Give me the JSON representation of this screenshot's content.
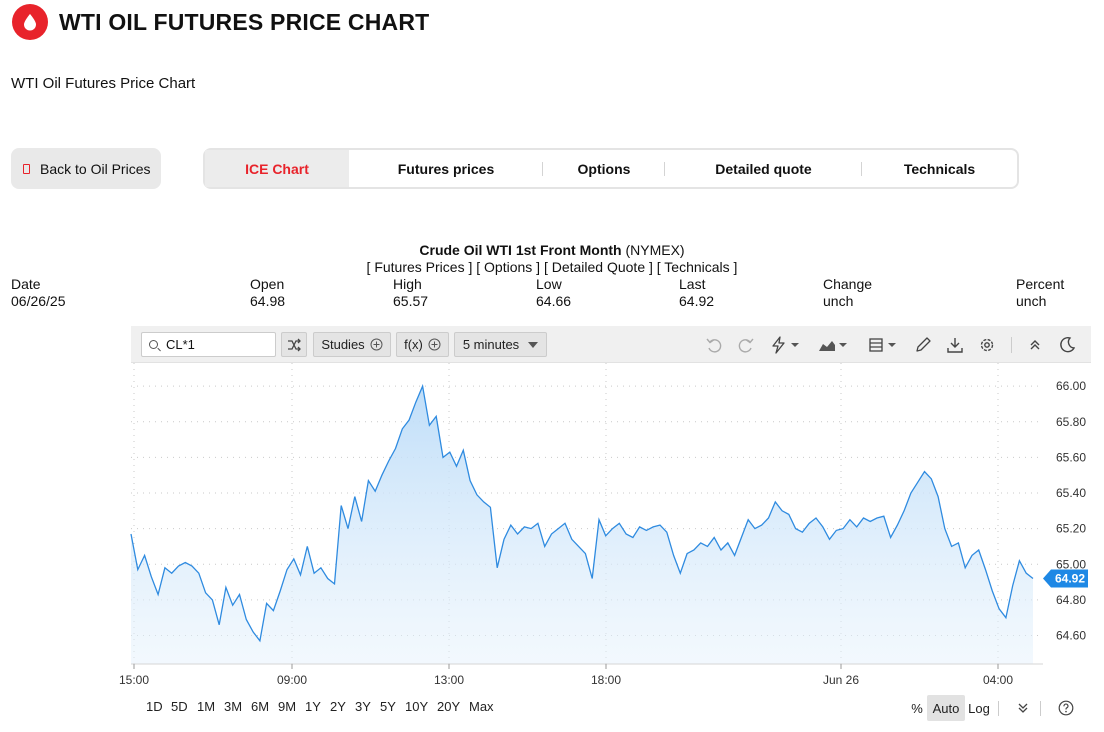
{
  "header": {
    "title": "WTI OIL FUTURES PRICE CHART",
    "subtitle": "WTI Oil Futures Price Chart"
  },
  "back_button": {
    "label": "Back to Oil Prices"
  },
  "tabs": [
    {
      "label": "ICE Chart",
      "active": true
    },
    {
      "label": "Futures prices",
      "active": false
    },
    {
      "label": "Options",
      "active": false
    },
    {
      "label": "Detailed quote",
      "active": false
    },
    {
      "label": "Technicals",
      "active": false
    }
  ],
  "contract": {
    "name": "Crude Oil WTI 1st Front Month",
    "exchange": "(NYMEX)",
    "links_line": "[ Futures Prices ] [ Options ] [ Detailed Quote ] [ Technicals ]"
  },
  "stats": {
    "date_label": "Date",
    "date": "06/26/25",
    "open_label": "Open",
    "open": "64.98",
    "high_label": "High",
    "high": "65.57",
    "low_label": "Low",
    "low": "64.66",
    "last_label": "Last",
    "last": "64.92",
    "change_label": "Change",
    "change": "unch",
    "percent_label": "Percent",
    "percent": "unch"
  },
  "toolbar": {
    "symbol": "CL*1",
    "studies_label": "Studies",
    "fx_label": "f(x)",
    "interval_label": "5 minutes",
    "icons": [
      "shuffle-icon",
      "undo-icon",
      "redo-icon",
      "lightning-icon",
      "chart-type-icon",
      "layout-icon",
      "pencil-icon",
      "download-icon",
      "settings-icon",
      "collapse-icon",
      "dark-mode-icon"
    ]
  },
  "ranges": [
    "1D",
    "5D",
    "1M",
    "3M",
    "6M",
    "9M",
    "1Y",
    "2Y",
    "3Y",
    "5Y",
    "10Y",
    "20Y",
    "Max"
  ],
  "scale": {
    "percent": "%",
    "auto": "Auto",
    "log": "Log",
    "active": "Auto"
  },
  "colors": {
    "brand": "#e8232b",
    "line": "#2f8be0",
    "fill": "#cfe5f9",
    "badge": "#1e88e5"
  },
  "chart_data": {
    "type": "area",
    "x_ticks": [
      "15:00",
      "09:00",
      "13:00",
      "18:00",
      "Jun 26",
      "04:00"
    ],
    "y_ticks": [
      "66.00",
      "65.80",
      "65.60",
      "65.40",
      "65.20",
      "65.00",
      "64.80",
      "64.60"
    ],
    "ylim": [
      64.44,
      66.13
    ],
    "last_value": "64.92",
    "series": [
      {
        "values": [
          65.17,
          64.97,
          65.05,
          64.93,
          64.83,
          64.98,
          64.95,
          64.99,
          65.01,
          64.99,
          64.95,
          64.84,
          64.8,
          64.66,
          64.87,
          64.77,
          64.83,
          64.69,
          64.62,
          64.57,
          64.78,
          64.74,
          64.85,
          64.97,
          65.03,
          64.94,
          65.1,
          64.95,
          64.98,
          64.92,
          64.89,
          65.33,
          65.2,
          65.38,
          65.24,
          65.47,
          65.41,
          65.5,
          65.58,
          65.65,
          65.76,
          65.81,
          65.91,
          66.0,
          65.78,
          65.83,
          65.6,
          65.63,
          65.55,
          65.64,
          65.47,
          65.39,
          65.35,
          65.32,
          64.98,
          65.14,
          65.22,
          65.17,
          65.21,
          65.2,
          65.23,
          65.1,
          65.17,
          65.2,
          65.23,
          65.14,
          65.1,
          65.06,
          64.92,
          65.25,
          65.16,
          65.2,
          65.23,
          65.17,
          65.15,
          65.21,
          65.19,
          65.21,
          65.22,
          65.18,
          65.05,
          64.95,
          65.06,
          65.08,
          65.12,
          65.1,
          65.15,
          65.08,
          65.12,
          65.05,
          65.15,
          65.25,
          65.2,
          65.22,
          65.26,
          65.35,
          65.3,
          65.28,
          65.2,
          65.18,
          65.23,
          65.26,
          65.21,
          65.14,
          65.19,
          65.2,
          65.25,
          65.21,
          65.26,
          65.24,
          65.26,
          65.27,
          65.15,
          65.22,
          65.3,
          65.4,
          65.46,
          65.52,
          65.48,
          65.38,
          65.2,
          65.1,
          65.12,
          64.98,
          65.05,
          65.08,
          64.97,
          64.85,
          64.75,
          64.7,
          64.88,
          65.02,
          64.95,
          64.92
        ]
      }
    ]
  }
}
